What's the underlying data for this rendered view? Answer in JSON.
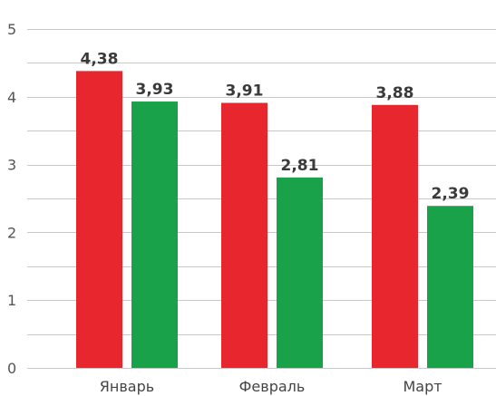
{
  "chart_data": {
    "type": "bar",
    "title": "",
    "xlabel": "",
    "ylabel": "",
    "categories": [
      "Январь",
      "Февраль",
      "Март"
    ],
    "series": [
      {
        "values": [
          4.38,
          3.91,
          3.88
        ],
        "value_labels": [
          "4,38",
          "3,91",
          "3,88"
        ],
        "color": "#e8262d"
      },
      {
        "values": [
          3.93,
          2.81,
          2.39
        ],
        "value_labels": [
          "3,93",
          "2,81",
          "2,39"
        ],
        "color": "#1aa24a"
      }
    ],
    "ylim": [
      0,
      5
    ],
    "yticks": [
      0,
      1,
      2,
      3,
      4,
      5
    ],
    "ytick_labels": [
      "0",
      "1",
      "2",
      "3",
      "4",
      "5"
    ],
    "grid": true,
    "grid_step": 0.5,
    "legend": "none"
  }
}
